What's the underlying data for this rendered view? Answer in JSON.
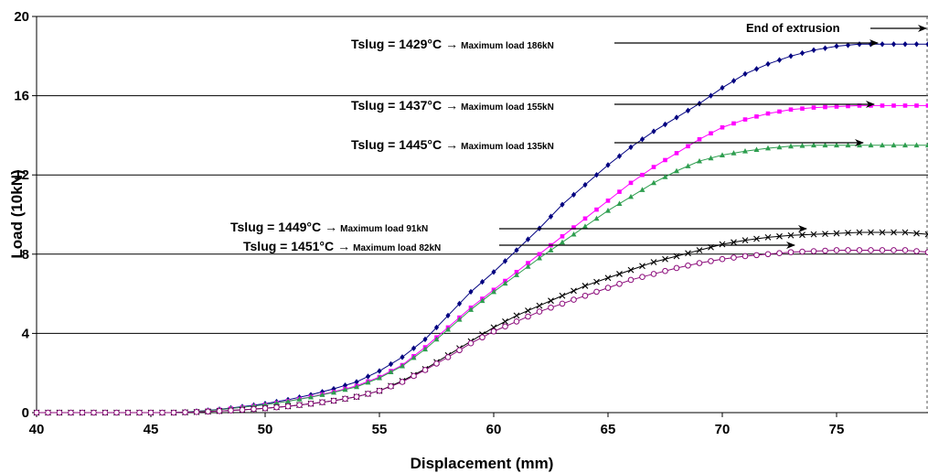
{
  "chart_data": {
    "type": "line",
    "xlabel": "Displacement (mm)",
    "ylabel": "Load (10kN)",
    "xlim": [
      40,
      79
    ],
    "ylim": [
      0,
      20
    ],
    "x_ticks": [
      "40",
      "45",
      "50",
      "55",
      "60",
      "65",
      "70",
      "75"
    ],
    "y_ticks": [
      "0",
      "4",
      "8",
      "12",
      "16",
      "20"
    ],
    "grid": "horizontal",
    "end_annotation": {
      "text": "End of extrusion",
      "x": 79
    },
    "series": [
      {
        "color": "#000080",
        "marker": "diamond",
        "label": {
          "prefix": "Tslug = ",
          "temp": "1429°C",
          "arrow": "→",
          "load": "Maximum load 186kN"
        },
        "x": [
          40,
          41,
          42,
          43,
          44,
          45,
          46,
          47,
          48,
          49,
          50,
          51,
          52,
          53,
          54,
          55,
          56,
          57,
          58,
          59,
          60,
          61,
          62,
          63,
          64,
          65,
          66,
          67,
          68,
          69,
          70,
          71,
          72,
          73,
          74,
          75,
          76,
          77,
          78,
          79
        ],
        "y": [
          0,
          0,
          0,
          0,
          0,
          0,
          0,
          0.07,
          0.17,
          0.3,
          0.45,
          0.65,
          0.9,
          1.2,
          1.55,
          2.1,
          2.8,
          3.7,
          4.9,
          6.1,
          7.1,
          8.2,
          9.3,
          10.5,
          11.5,
          12.5,
          13.4,
          14.2,
          14.9,
          15.6,
          16.4,
          17.1,
          17.6,
          18.0,
          18.3,
          18.5,
          18.6,
          18.6,
          18.6,
          18.6
        ]
      },
      {
        "color": "#ff00ff",
        "marker": "square",
        "label": {
          "prefix": "Tslug = ",
          "temp": "1437°C",
          "arrow": "→",
          "load": "Maximum load 155kN"
        },
        "x": [
          40,
          41,
          42,
          43,
          44,
          45,
          46,
          47,
          48,
          49,
          50,
          51,
          52,
          53,
          54,
          55,
          56,
          57,
          58,
          59,
          60,
          61,
          62,
          63,
          64,
          65,
          66,
          67,
          68,
          69,
          70,
          71,
          72,
          73,
          74,
          75,
          76,
          77,
          78,
          79
        ],
        "y": [
          0,
          0,
          0,
          0,
          0,
          0,
          0,
          0.06,
          0.15,
          0.27,
          0.4,
          0.58,
          0.8,
          1.05,
          1.35,
          1.8,
          2.4,
          3.3,
          4.3,
          5.3,
          6.2,
          7.1,
          8.0,
          8.9,
          9.8,
          10.7,
          11.6,
          12.4,
          13.1,
          13.8,
          14.4,
          14.8,
          15.1,
          15.3,
          15.4,
          15.45,
          15.5,
          15.5,
          15.5,
          15.5
        ]
      },
      {
        "color": "#2e9e4f",
        "marker": "triangle",
        "label": {
          "prefix": "Tslug = ",
          "temp": "1445°C",
          "arrow": "→",
          "load": "Maximum load 135kN"
        },
        "x": [
          40,
          41,
          42,
          43,
          44,
          45,
          46,
          47,
          48,
          49,
          50,
          51,
          52,
          53,
          54,
          55,
          56,
          57,
          58,
          59,
          60,
          61,
          62,
          63,
          64,
          65,
          66,
          67,
          68,
          69,
          70,
          71,
          72,
          73,
          74,
          75,
          76,
          77,
          78,
          79
        ],
        "y": [
          0,
          0,
          0,
          0,
          0,
          0,
          0,
          0.06,
          0.15,
          0.27,
          0.4,
          0.57,
          0.78,
          1.02,
          1.3,
          1.75,
          2.35,
          3.2,
          4.2,
          5.2,
          6.1,
          6.95,
          7.8,
          8.6,
          9.4,
          10.2,
          10.9,
          11.6,
          12.2,
          12.7,
          13.0,
          13.2,
          13.35,
          13.45,
          13.5,
          13.5,
          13.5,
          13.5,
          13.5,
          13.5
        ]
      },
      {
        "color": "#000000",
        "marker": "x",
        "label": {
          "prefix": "Tslug = ",
          "temp": "1449°C",
          "arrow": "→",
          "load": "Maximum load 91kN"
        },
        "x": [
          40,
          41,
          42,
          43,
          44,
          45,
          46,
          47,
          48,
          49,
          50,
          51,
          52,
          53,
          54,
          55,
          56,
          57,
          58,
          59,
          60,
          61,
          62,
          63,
          64,
          65,
          66,
          67,
          68,
          69,
          70,
          71,
          72,
          73,
          74,
          75,
          76,
          77,
          78,
          79
        ],
        "y": [
          0,
          0,
          0,
          0,
          0,
          0,
          0,
          0.03,
          0.08,
          0.14,
          0.22,
          0.32,
          0.45,
          0.6,
          0.8,
          1.1,
          1.6,
          2.2,
          2.9,
          3.6,
          4.3,
          4.9,
          5.4,
          5.9,
          6.4,
          6.8,
          7.2,
          7.6,
          7.9,
          8.2,
          8.5,
          8.7,
          8.85,
          8.95,
          9.0,
          9.05,
          9.1,
          9.1,
          9.1,
          9.0
        ]
      },
      {
        "color": "#8b0a7a",
        "marker": "circle",
        "label": {
          "prefix": "Tslug = ",
          "temp": "1451°C",
          "arrow": "→",
          "load": "Maximum load 82kN"
        },
        "x": [
          40,
          41,
          42,
          43,
          44,
          45,
          46,
          47,
          48,
          49,
          50,
          51,
          52,
          53,
          54,
          55,
          56,
          57,
          58,
          59,
          60,
          61,
          62,
          63,
          64,
          65,
          66,
          67,
          68,
          69,
          70,
          71,
          72,
          73,
          74,
          75,
          76,
          77,
          78,
          79
        ],
        "y": [
          0,
          0,
          0,
          0,
          0,
          0,
          0,
          0.03,
          0.08,
          0.14,
          0.22,
          0.32,
          0.45,
          0.6,
          0.8,
          1.1,
          1.55,
          2.15,
          2.8,
          3.5,
          4.1,
          4.6,
          5.1,
          5.5,
          5.9,
          6.3,
          6.7,
          7.0,
          7.3,
          7.55,
          7.75,
          7.9,
          8.0,
          8.1,
          8.15,
          8.2,
          8.2,
          8.2,
          8.2,
          8.1
        ]
      }
    ]
  }
}
